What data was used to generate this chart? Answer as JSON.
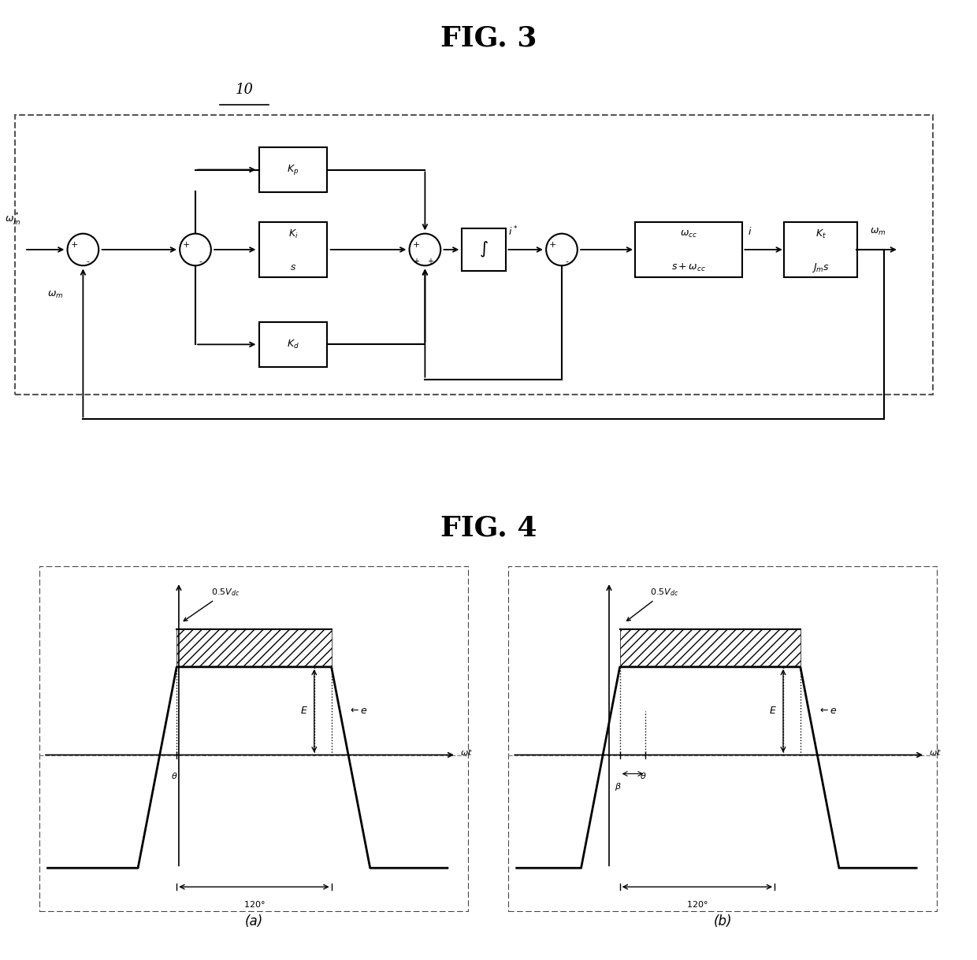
{
  "fig3_title": "FIG. 3",
  "fig4_title": "FIG. 4",
  "label_10": "10",
  "sub_a": "(a)",
  "sub_b": "(b)",
  "background": "#ffffff",
  "box_color": "#000000",
  "line_color": "#000000",
  "hatch_color": "#aaaaaa",
  "waveform_color": "#000000",
  "axis_color": "#888888"
}
